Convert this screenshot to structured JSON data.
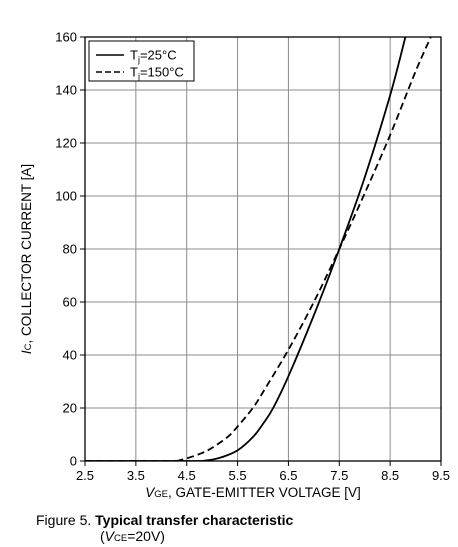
{
  "chart_data": {
    "type": "line",
    "xlabel": {
      "var": "V",
      "sub": "GE",
      "rest": ", GATE-EMITTER VOLTAGE [V]"
    },
    "ylabel": {
      "var": "I",
      "sub": "C",
      "rest": ", COLLECTOR CURRENT [A]"
    },
    "xlim": [
      2.5,
      9.5
    ],
    "ylim": [
      0,
      160
    ],
    "xticks": [
      "2.5",
      "3.5",
      "4.5",
      "5.5",
      "6.5",
      "7.5",
      "8.5",
      "9.5"
    ],
    "yticks": [
      "0",
      "20",
      "40",
      "60",
      "80",
      "100",
      "120",
      "140",
      "160"
    ],
    "grid": true,
    "legend_position": "top-left",
    "series": [
      {
        "name": "Tj=25°C",
        "legend": {
          "prefix": "T",
          "sub": "j",
          "suffix": "=25°C"
        },
        "style": "solid",
        "x": [
          4.8,
          5.0,
          5.2,
          5.5,
          5.8,
          6.0,
          6.2,
          6.5,
          7.0,
          7.5,
          8.0,
          8.5,
          8.8
        ],
        "y": [
          0,
          0.5,
          1.5,
          4,
          9,
          14,
          20,
          32,
          55,
          80,
          107,
          138,
          160
        ]
      },
      {
        "name": "Tj=150°C",
        "legend": {
          "prefix": "T",
          "sub": "j",
          "suffix": "=150°C"
        },
        "style": "dashed",
        "x": [
          4.3,
          4.5,
          4.8,
          5.0,
          5.3,
          5.5,
          5.8,
          6.0,
          6.5,
          7.0,
          7.5,
          8.0,
          8.5,
          9.0,
          9.3
        ],
        "y": [
          0,
          1,
          3,
          5,
          9,
          13,
          20,
          26,
          42,
          60,
          80,
          101,
          123,
          147,
          160
        ]
      }
    ]
  },
  "caption": {
    "figure": "Figure 5.",
    "title": "Typical transfer characteristic",
    "cond_open": "(",
    "cond_var": "V",
    "cond_sub": "CE",
    "cond_rest": "=20V)"
  }
}
